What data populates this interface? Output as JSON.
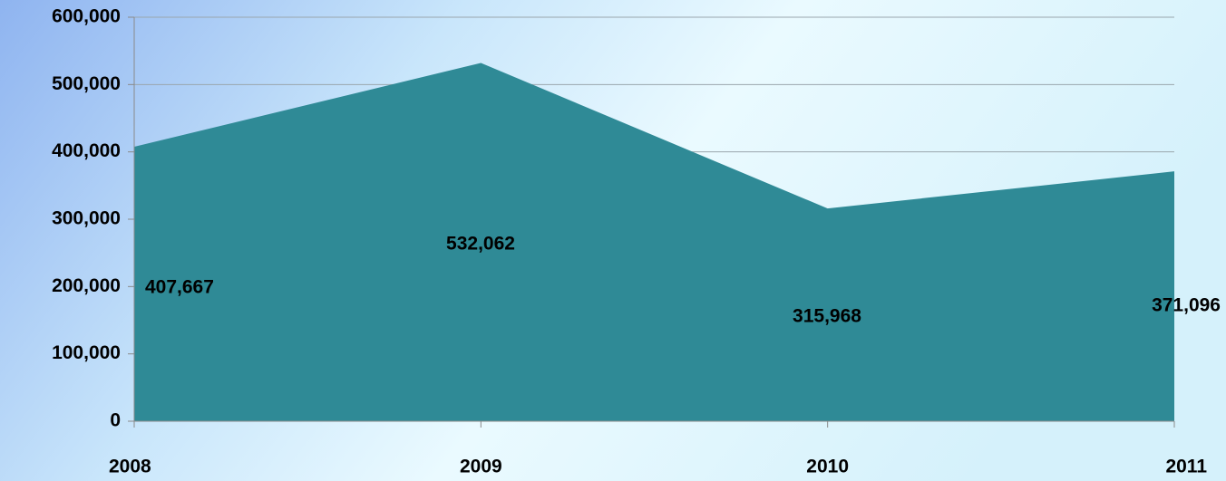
{
  "chart_data": {
    "type": "area",
    "categories": [
      "2008",
      "2009",
      "2010",
      "2011"
    ],
    "values": [
      407667,
      532062,
      315968,
      371096
    ],
    "value_labels": [
      "407,667",
      "532,062",
      "315,968",
      "371,096"
    ],
    "color": "#2f8a96",
    "ylim": [
      0,
      600000
    ],
    "yticks": [
      0,
      {
        "value": 100000,
        "label": "100,000"
      },
      {
        "value": 200000,
        "label": "200,000"
      },
      {
        "value": 300000,
        "label": "300,000"
      },
      {
        "value": 400000,
        "label": "400,000"
      },
      {
        "value": 500000,
        "label": "500,000"
      },
      {
        "value": 600000,
        "label": "600,000"
      }
    ],
    "grid": true
  }
}
